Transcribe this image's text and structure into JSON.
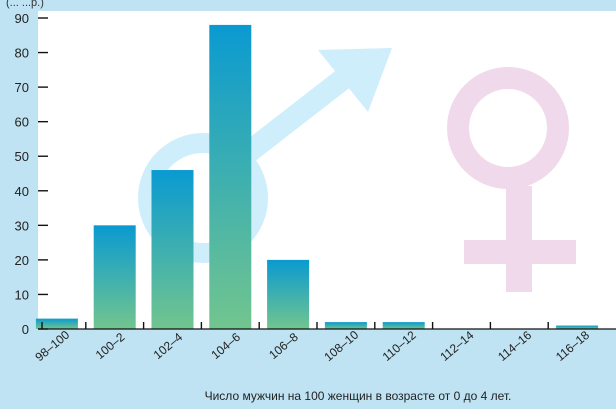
{
  "header": {
    "partial_text": "(...      ...р.)"
  },
  "chart_data": {
    "type": "bar",
    "categories": [
      "98–100",
      "100–2",
      "102–4",
      "104–6",
      "106–8",
      "108–10",
      "110–12",
      "112–14",
      "114–16",
      "116–18"
    ],
    "values": [
      3,
      30,
      46,
      88,
      20,
      2,
      2,
      0,
      0,
      1
    ],
    "xlabel": "Число мужчин на 100 женщин в возрасте от 0 до 4 лет.",
    "ylabel": "",
    "ylim": [
      0,
      90
    ],
    "yticks": [
      0,
      10,
      20,
      30,
      40,
      50,
      60,
      70,
      80,
      90
    ],
    "grid": false,
    "colors": {
      "background": "#bfe3f2",
      "plot_background": "#ffffff",
      "bar_top": "#0a9ad1",
      "bar_bottom": "#72c58e",
      "male_symbol": "#cfeefb",
      "female_symbol": "#efd9ea"
    },
    "decorations": [
      "male-symbol",
      "female-symbol"
    ]
  }
}
